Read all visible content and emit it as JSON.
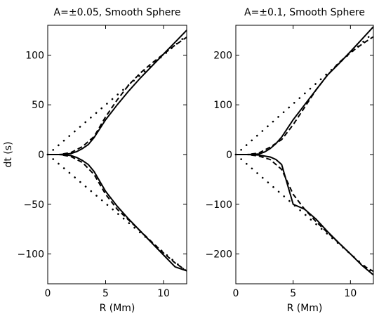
{
  "chart_data": [
    {
      "type": "line",
      "title": "A=±0.05, Smooth Sphere",
      "xlabel": "R (Mm)",
      "ylabel": "dt (s)",
      "xlim": [
        0,
        12
      ],
      "ylim": [
        -130,
        130
      ],
      "xticks": [
        0,
        5,
        10
      ],
      "yticks": [
        -100,
        -50,
        0,
        50,
        100
      ],
      "xtick_labels": [
        "0",
        "5",
        "10"
      ],
      "ytick_labels": [
        "−100",
        "−50",
        "0",
        "50",
        "100"
      ],
      "grid": false,
      "series": [
        {
          "style": "solid",
          "x": [
            0,
            1,
            2,
            2.5,
            3,
            3.5,
            4,
            5,
            6,
            7,
            8,
            9,
            10,
            11,
            12
          ],
          "y": [
            0,
            0,
            1,
            3,
            6,
            10,
            17,
            35,
            50,
            64,
            77,
            89,
            101,
            113,
            125
          ]
        },
        {
          "style": "dashed",
          "x": [
            0,
            1,
            2,
            3,
            4,
            5,
            6,
            7,
            8,
            9,
            10,
            11,
            12
          ],
          "y": [
            0,
            0,
            2,
            8,
            18,
            38,
            55,
            70,
            82,
            92,
            101,
            110,
            118
          ]
        },
        {
          "style": "dotted",
          "x": [
            0,
            12
          ],
          "y": [
            0,
            120
          ]
        },
        {
          "style": "solid",
          "x": [
            0,
            1,
            2,
            2.5,
            3,
            3.5,
            4,
            5,
            6,
            7,
            8,
            9,
            10,
            11,
            12
          ],
          "y": [
            0,
            0,
            -1,
            -3,
            -6,
            -10,
            -17,
            -37,
            -52,
            -65,
            -77,
            -89,
            -101,
            -113,
            -117
          ]
        },
        {
          "style": "dashed",
          "x": [
            0,
            1,
            2,
            3,
            4,
            5,
            6,
            7,
            8,
            9,
            10,
            11,
            12
          ],
          "y": [
            0,
            0,
            -2,
            -8,
            -20,
            -40,
            -55,
            -66,
            -77,
            -88,
            -99,
            -109,
            -117
          ]
        },
        {
          "style": "dotted",
          "x": [
            0,
            12
          ],
          "y": [
            0,
            -118
          ]
        }
      ]
    },
    {
      "type": "line",
      "title": "A=±0.1, Smooth Sphere",
      "xlabel": "R (Mm)",
      "ylabel": "",
      "xlim": [
        0,
        12
      ],
      "ylim": [
        -260,
        260
      ],
      "xticks": [
        0,
        5,
        10
      ],
      "yticks": [
        -200,
        -100,
        0,
        100,
        200
      ],
      "xtick_labels": [
        "0",
        "5",
        "10"
      ],
      "ytick_labels": [
        "−200",
        "−100",
        "0",
        "100",
        "200"
      ],
      "grid": false,
      "series": [
        {
          "style": "solid",
          "x": [
            0,
            1,
            2,
            2.5,
            3,
            3.5,
            4,
            5,
            6,
            7,
            8,
            9,
            10,
            11,
            12
          ],
          "y": [
            0,
            0,
            1,
            5,
            12,
            22,
            35,
            70,
            100,
            130,
            160,
            183,
            207,
            232,
            257
          ]
        },
        {
          "style": "dashed",
          "x": [
            0,
            1,
            2,
            3,
            4,
            5,
            6,
            7,
            8,
            9,
            10,
            11,
            12
          ],
          "y": [
            0,
            0,
            3,
            15,
            30,
            60,
            95,
            130,
            160,
            185,
            205,
            222,
            237
          ]
        },
        {
          "style": "dotted",
          "x": [
            0,
            12
          ],
          "y": [
            0,
            245
          ]
        },
        {
          "style": "solid",
          "x": [
            0,
            1,
            2,
            2.5,
            3,
            3.5,
            4,
            5,
            6,
            7,
            8,
            9,
            10,
            11,
            12
          ],
          "y": [
            0,
            0,
            -1,
            -3,
            -5,
            -10,
            -20,
            -100,
            -110,
            -130,
            -155,
            -178,
            -200,
            -223,
            -242
          ]
        },
        {
          "style": "dashed",
          "x": [
            0,
            1,
            2,
            3,
            4,
            5,
            6,
            7,
            8,
            9,
            10,
            11,
            12
          ],
          "y": [
            0,
            0,
            -3,
            -10,
            -30,
            -80,
            -110,
            -135,
            -157,
            -178,
            -200,
            -222,
            -235
          ]
        },
        {
          "style": "dotted",
          "x": [
            0,
            12
          ],
          "y": [
            0,
            -240
          ]
        }
      ]
    }
  ]
}
